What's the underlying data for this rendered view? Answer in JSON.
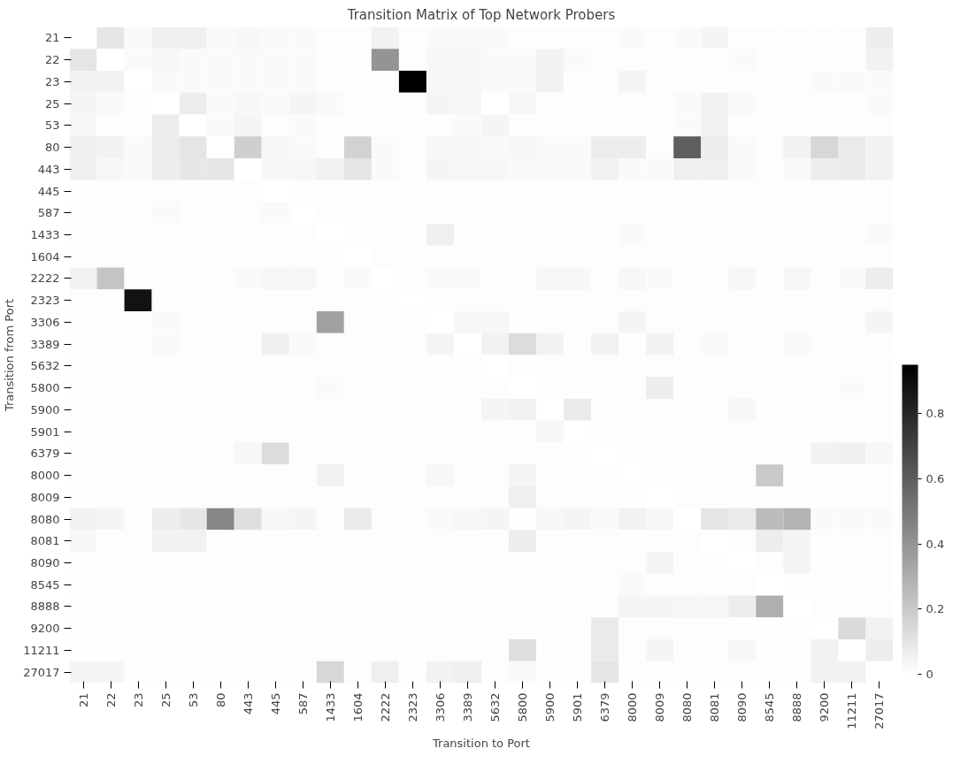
{
  "chart_data": {
    "type": "heatmap",
    "title": "Transition Matrix of Top Network Probers",
    "xlabel": "Transition to Port",
    "ylabel": "Transition from Port",
    "categories": [
      "21",
      "22",
      "23",
      "25",
      "53",
      "80",
      "443",
      "445",
      "587",
      "1433",
      "1604",
      "2222",
      "2323",
      "3306",
      "3389",
      "5632",
      "5800",
      "5900",
      "5901",
      "6379",
      "8000",
      "8009",
      "8080",
      "8081",
      "8090",
      "8545",
      "8888",
      "9200",
      "11211",
      "27017"
    ],
    "y_categories": [
      "21",
      "22",
      "23",
      "25",
      "53",
      "80",
      "443",
      "445",
      "587",
      "1433",
      "1604",
      "2222",
      "2323",
      "3306",
      "3389",
      "5632",
      "5800",
      "5900",
      "5901",
      "6379",
      "8000",
      "8009",
      "8080",
      "8081",
      "8090",
      "8545",
      "8888",
      "9200",
      "11211",
      "27017"
    ],
    "cells": [
      [
        0,
        0.1,
        0.02,
        0.06,
        0.06,
        0.02,
        0.03,
        0.02,
        0.02,
        0.01,
        0.01,
        0.05,
        0.01,
        0.02,
        0.02,
        0.02,
        0.01,
        0.01,
        0.01,
        0.01,
        0.02,
        0.01,
        0.02,
        0.04,
        0.01,
        0.01,
        0.01,
        0.01,
        0.01,
        0.07
      ],
      [
        0.1,
        0,
        0.02,
        0.03,
        0.02,
        0.02,
        0.02,
        0.02,
        0.02,
        0.01,
        0.01,
        0.4,
        0.01,
        0.03,
        0.03,
        0.02,
        0.02,
        0.05,
        0.02,
        0.01,
        0.01,
        0.01,
        0.01,
        0.01,
        0.02,
        0.01,
        0.01,
        0.01,
        0.01,
        0.05
      ],
      [
        0.05,
        0.05,
        0,
        0.02,
        0.02,
        0.02,
        0.02,
        0.02,
        0.02,
        0.01,
        0.01,
        0.01,
        0.95,
        0.03,
        0.03,
        0.02,
        0.02,
        0.05,
        0.01,
        0.01,
        0.04,
        0.01,
        0.01,
        0.01,
        0.01,
        0.01,
        0.01,
        0.02,
        0.02,
        0.02
      ],
      [
        0.04,
        0.02,
        0.01,
        0,
        0.07,
        0.02,
        0.03,
        0.02,
        0.04,
        0.02,
        0.01,
        0.01,
        0.01,
        0.04,
        0.03,
        0,
        0.03,
        0.01,
        0.01,
        0.01,
        0.01,
        0.01,
        0.02,
        0.05,
        0.02,
        0.01,
        0.01,
        0.01,
        0.01,
        0.02
      ],
      [
        0.03,
        0.01,
        0.01,
        0.07,
        0,
        0.02,
        0.04,
        0.01,
        0.02,
        0.01,
        0.01,
        0.01,
        0.01,
        0.01,
        0.02,
        0.04,
        0.01,
        0.01,
        0.01,
        0.01,
        0.01,
        0.01,
        0.02,
        0.05,
        0.01,
        0.01,
        0.01,
        0.01,
        0.01,
        0.01
      ],
      [
        0.06,
        0.05,
        0.02,
        0.07,
        0.1,
        0,
        0.18,
        0.03,
        0.02,
        0.01,
        0.17,
        0.02,
        0.01,
        0.03,
        0.03,
        0.02,
        0.03,
        0.02,
        0.02,
        0.07,
        0.07,
        0.01,
        0.6,
        0.07,
        0.02,
        0.01,
        0.05,
        0.15,
        0.08,
        0.05
      ],
      [
        0.06,
        0.03,
        0.02,
        0.07,
        0.09,
        0.1,
        0,
        0.03,
        0.03,
        0.05,
        0.1,
        0.02,
        0.01,
        0.04,
        0.03,
        0.03,
        0.02,
        0.02,
        0.02,
        0.05,
        0.02,
        0.02,
        0.06,
        0.06,
        0.02,
        0.01,
        0.02,
        0.07,
        0.08,
        0.05
      ],
      [
        0.01,
        0.01,
        0.01,
        0.01,
        0.01,
        0.01,
        0.01,
        0,
        0.01,
        0.01,
        0.01,
        0.01,
        0.01,
        0.01,
        0.01,
        0.01,
        0.01,
        0.01,
        0.01,
        0.01,
        0.01,
        0.01,
        0.01,
        0.01,
        0.01,
        0.01,
        0.01,
        0.01,
        0.01,
        0.01
      ],
      [
        0.01,
        0.01,
        0.01,
        0.02,
        0.01,
        0.01,
        0.01,
        0.02,
        0,
        0.01,
        0.01,
        0.01,
        0.01,
        0.01,
        0.01,
        0.01,
        0.01,
        0.01,
        0.01,
        0.01,
        0.01,
        0.01,
        0.01,
        0.01,
        0.01,
        0.01,
        0.01,
        0.01,
        0.01,
        0.01
      ],
      [
        0.01,
        0.01,
        0.01,
        0.01,
        0.01,
        0.01,
        0.01,
        0.01,
        0.01,
        0,
        0.01,
        0.01,
        0.01,
        0.06,
        0.01,
        0.01,
        0.01,
        0.01,
        0.01,
        0.01,
        0.02,
        0.01,
        0.01,
        0.01,
        0.01,
        0.01,
        0.01,
        0.01,
        0.01,
        0.02
      ],
      [
        0.01,
        0.01,
        0.01,
        0.01,
        0.01,
        0.01,
        0.01,
        0.01,
        0.01,
        0.01,
        0,
        0.01,
        0.01,
        0.01,
        0.01,
        0.01,
        0.01,
        0.01,
        0.01,
        0.01,
        0.01,
        0.01,
        0.01,
        0.01,
        0.01,
        0.01,
        0.01,
        0.01,
        0.01,
        0.01
      ],
      [
        0.05,
        0.22,
        0.01,
        0.01,
        0.01,
        0.01,
        0.02,
        0.03,
        0.03,
        0.01,
        0.02,
        0,
        0.01,
        0.02,
        0.02,
        0.01,
        0.01,
        0.03,
        0.03,
        0.01,
        0.03,
        0.02,
        0.01,
        0.01,
        0.03,
        0.01,
        0.03,
        0.01,
        0.02,
        0.07
      ],
      [
        0.01,
        0.01,
        0.88,
        0.01,
        0.01,
        0.01,
        0.01,
        0.01,
        0.01,
        0.01,
        0.01,
        0.01,
        0,
        0.01,
        0.01,
        0.01,
        0.01,
        0.01,
        0.01,
        0.01,
        0.01,
        0.01,
        0.01,
        0.01,
        0.01,
        0.01,
        0.01,
        0.01,
        0.01,
        0.01
      ],
      [
        0.01,
        0.01,
        0.01,
        0.02,
        0.01,
        0.01,
        0.01,
        0.01,
        0.01,
        0.35,
        0.01,
        0.01,
        0.01,
        0,
        0.03,
        0.03,
        0.01,
        0.01,
        0.01,
        0.01,
        0.04,
        0.01,
        0.01,
        0.01,
        0.01,
        0.01,
        0.01,
        0.01,
        0.01,
        0.04
      ],
      [
        0.01,
        0.01,
        0.01,
        0.02,
        0.01,
        0.01,
        0.01,
        0.06,
        0.02,
        0.01,
        0.01,
        0.01,
        0.01,
        0.04,
        0,
        0.05,
        0.13,
        0.05,
        0.01,
        0.05,
        0.01,
        0.05,
        0.01,
        0.02,
        0.01,
        0.01,
        0.02,
        0.01,
        0.01,
        0.01
      ],
      [
        0.01,
        0.01,
        0.01,
        0.01,
        0.01,
        0.01,
        0.01,
        0.01,
        0.01,
        0.01,
        0.01,
        0.01,
        0.01,
        0.01,
        0.01,
        0,
        0.01,
        0.01,
        0.01,
        0.01,
        0.01,
        0.01,
        0.01,
        0.01,
        0.01,
        0.01,
        0.01,
        0.01,
        0.01,
        0.01
      ],
      [
        0.01,
        0.01,
        0.01,
        0.01,
        0.01,
        0.01,
        0.01,
        0.01,
        0.01,
        0.02,
        0.01,
        0.01,
        0.01,
        0.01,
        0.01,
        0.01,
        0,
        0.01,
        0.01,
        0.01,
        0.01,
        0.07,
        0.01,
        0.01,
        0.01,
        0.01,
        0.01,
        0.01,
        0.02,
        0.01
      ],
      [
        0.01,
        0.01,
        0.01,
        0.01,
        0.01,
        0.01,
        0.01,
        0.01,
        0.01,
        0.01,
        0.01,
        0.01,
        0.01,
        0.01,
        0.01,
        0.04,
        0.05,
        0,
        0.08,
        0.01,
        0.01,
        0.01,
        0.01,
        0.01,
        0.03,
        0.01,
        0.01,
        0.01,
        0.01,
        0.01
      ],
      [
        0.01,
        0.01,
        0.01,
        0.01,
        0.01,
        0.01,
        0.01,
        0.01,
        0.01,
        0.01,
        0.01,
        0.01,
        0.01,
        0.01,
        0.01,
        0.01,
        0.01,
        0.03,
        0,
        0.01,
        0.01,
        0.01,
        0.01,
        0.01,
        0.01,
        0.01,
        0.01,
        0.01,
        0.01,
        0.01
      ],
      [
        0.01,
        0.01,
        0.01,
        0.01,
        0.01,
        0.01,
        0.03,
        0.13,
        0.01,
        0.01,
        0.01,
        0.01,
        0.01,
        0.01,
        0.01,
        0.01,
        0.01,
        0.01,
        0.01,
        0,
        0.01,
        0.01,
        0.01,
        0.01,
        0.01,
        0.01,
        0.01,
        0.05,
        0.06,
        0.03
      ],
      [
        0.01,
        0.01,
        0.01,
        0.01,
        0.01,
        0.01,
        0.01,
        0.01,
        0.01,
        0.05,
        0.01,
        0.01,
        0.01,
        0.03,
        0.01,
        0.01,
        0.04,
        0.01,
        0.01,
        0.01,
        0,
        0.01,
        0.01,
        0.01,
        0.01,
        0.2,
        0.01,
        0.01,
        0.01,
        0.01
      ],
      [
        0.01,
        0.01,
        0.01,
        0.01,
        0.01,
        0.01,
        0.01,
        0.01,
        0.01,
        0.01,
        0.01,
        0.01,
        0.01,
        0.01,
        0.01,
        0.01,
        0.06,
        0.01,
        0.01,
        0.01,
        0.01,
        0,
        0.01,
        0.01,
        0.01,
        0.01,
        0.01,
        0.01,
        0.01,
        0.01
      ],
      [
        0.05,
        0.04,
        0.01,
        0.07,
        0.09,
        0.45,
        0.12,
        0.03,
        0.04,
        0.01,
        0.08,
        0.01,
        0.01,
        0.02,
        0.03,
        0.04,
        0.01,
        0.03,
        0.04,
        0.02,
        0.05,
        0.03,
        0,
        0.1,
        0.08,
        0.25,
        0.28,
        0.02,
        0.02,
        0.02
      ],
      [
        0.03,
        0.01,
        0.01,
        0.05,
        0.05,
        0.01,
        0.01,
        0.01,
        0.01,
        0.01,
        0.01,
        0.01,
        0.01,
        0.01,
        0.01,
        0.01,
        0.07,
        0.01,
        0.01,
        0.01,
        0.01,
        0.01,
        0.01,
        0,
        0.01,
        0.07,
        0.04,
        0.01,
        0.01,
        0.01
      ],
      [
        0.01,
        0.01,
        0.01,
        0.01,
        0.01,
        0.01,
        0.01,
        0.01,
        0.01,
        0.01,
        0.01,
        0.01,
        0.01,
        0.01,
        0.01,
        0.01,
        0.01,
        0.01,
        0.01,
        0.01,
        0.01,
        0.04,
        0.01,
        0.01,
        0,
        0.01,
        0.04,
        0.01,
        0.01,
        0.01
      ],
      [
        0.01,
        0.01,
        0.01,
        0.01,
        0.01,
        0.01,
        0.01,
        0.01,
        0.01,
        0.01,
        0.01,
        0.01,
        0.01,
        0.01,
        0.01,
        0.01,
        0.01,
        0.01,
        0.01,
        0.01,
        0.02,
        0.01,
        0.01,
        0.01,
        0.01,
        0,
        0.01,
        0.01,
        0.01,
        0.01
      ],
      [
        0.01,
        0.01,
        0.01,
        0.01,
        0.01,
        0.01,
        0.01,
        0.01,
        0.01,
        0.01,
        0.01,
        0.01,
        0.01,
        0.01,
        0.01,
        0.01,
        0.01,
        0.01,
        0.01,
        0.01,
        0.04,
        0.04,
        0.03,
        0.03,
        0.07,
        0.3,
        0,
        0.01,
        0.01,
        0.01
      ],
      [
        0.01,
        0.01,
        0.01,
        0.01,
        0.01,
        0.01,
        0.01,
        0.01,
        0.01,
        0.01,
        0.01,
        0.01,
        0.01,
        0.01,
        0.01,
        0.01,
        0.01,
        0.01,
        0.01,
        0.08,
        0.01,
        0.01,
        0.01,
        0.01,
        0.01,
        0.01,
        0.01,
        0,
        0.14,
        0.05
      ],
      [
        0.01,
        0.01,
        0.01,
        0.01,
        0.01,
        0.01,
        0.01,
        0.01,
        0.01,
        0.01,
        0.01,
        0.01,
        0.01,
        0.01,
        0.01,
        0.01,
        0.12,
        0.01,
        0.01,
        0.08,
        0.01,
        0.04,
        0.01,
        0.01,
        0.03,
        0.01,
        0.01,
        0.05,
        0,
        0.07
      ],
      [
        0.04,
        0.04,
        0.01,
        0.01,
        0.01,
        0.01,
        0.01,
        0.01,
        0.01,
        0.15,
        0.01,
        0.06,
        0.01,
        0.05,
        0.06,
        0.01,
        0.02,
        0.01,
        0.01,
        0.1,
        0.01,
        0.01,
        0.01,
        0.01,
        0.01,
        0.01,
        0.01,
        0.05,
        0.05,
        0
      ]
    ],
    "clim": [
      0,
      0.95
    ],
    "cticks": [
      0.0,
      0.2,
      0.4,
      0.6,
      0.8
    ],
    "grid": false
  }
}
